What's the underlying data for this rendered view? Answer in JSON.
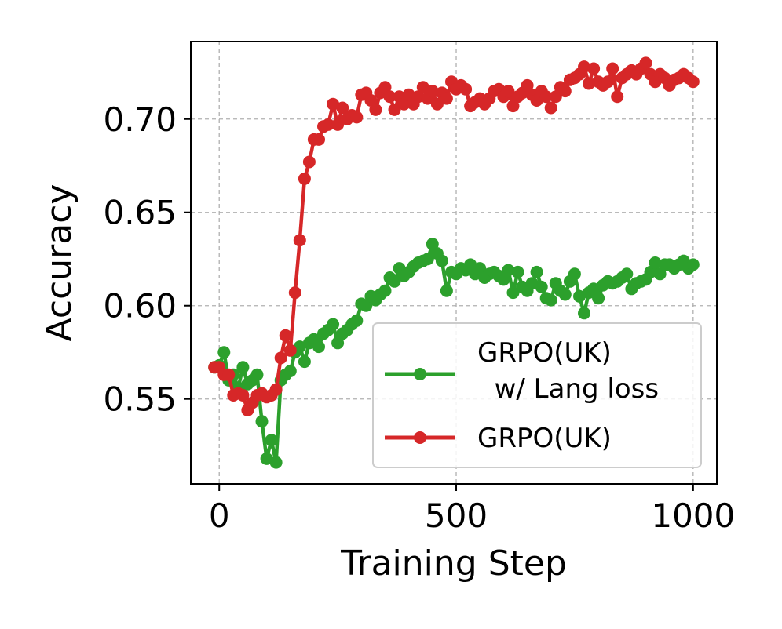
{
  "chart_data": {
    "type": "line",
    "xlabel": "Training Step",
    "ylabel": "Accuracy",
    "xlim": [
      -60,
      1050
    ],
    "ylim": [
      0.5045,
      0.7415
    ],
    "xticks": [
      0,
      500,
      1000
    ],
    "xtick_labels": [
      "0",
      "500",
      "1000"
    ],
    "yticks": [
      0.55,
      0.6,
      0.65,
      0.7
    ],
    "ytick_labels": [
      "0.55",
      "0.60",
      "0.65",
      "0.70"
    ],
    "grid": true,
    "legend_position": "lower right",
    "series": [
      {
        "name": "GRPO(UK)\n w/ Lang loss",
        "color": "#2ca02c",
        "marker": "circle",
        "x": [
          -10,
          0,
          10,
          20,
          30,
          40,
          50,
          60,
          70,
          80,
          90,
          100,
          110,
          120,
          130,
          140,
          150,
          160,
          170,
          180,
          190,
          200,
          210,
          220,
          230,
          240,
          250,
          260,
          270,
          280,
          290,
          300,
          310,
          320,
          330,
          340,
          350,
          360,
          370,
          380,
          390,
          400,
          410,
          420,
          430,
          440,
          450,
          460,
          470,
          480,
          490,
          500,
          510,
          520,
          530,
          540,
          550,
          560,
          570,
          580,
          590,
          600,
          610,
          620,
          630,
          640,
          650,
          660,
          670,
          680,
          690,
          700,
          710,
          720,
          730,
          740,
          750,
          760,
          770,
          780,
          790,
          800,
          810,
          820,
          830,
          840,
          850,
          860,
          870,
          880,
          890,
          900,
          910,
          920,
          930,
          940,
          950,
          960,
          970,
          980,
          990,
          1000
        ],
        "y": [
          0.567,
          0.568,
          0.575,
          0.56,
          0.563,
          0.556,
          0.567,
          0.558,
          0.56,
          0.563,
          0.538,
          0.518,
          0.528,
          0.516,
          0.56,
          0.563,
          0.565,
          0.575,
          0.578,
          0.57,
          0.58,
          0.582,
          0.578,
          0.585,
          0.587,
          0.59,
          0.58,
          0.585,
          0.587,
          0.59,
          0.592,
          0.601,
          0.6,
          0.605,
          0.603,
          0.606,
          0.608,
          0.615,
          0.613,
          0.62,
          0.616,
          0.618,
          0.621,
          0.623,
          0.624,
          0.625,
          0.633,
          0.628,
          0.624,
          0.608,
          0.618,
          0.617,
          0.62,
          0.619,
          0.622,
          0.617,
          0.62,
          0.615,
          0.617,
          0.618,
          0.616,
          0.614,
          0.619,
          0.607,
          0.618,
          0.61,
          0.608,
          0.612,
          0.618,
          0.61,
          0.604,
          0.603,
          0.612,
          0.608,
          0.606,
          0.613,
          0.617,
          0.605,
          0.596,
          0.607,
          0.609,
          0.604,
          0.611,
          0.613,
          0.612,
          0.613,
          0.615,
          0.617,
          0.609,
          0.612,
          0.613,
          0.614,
          0.618,
          0.623,
          0.617,
          0.622,
          0.622,
          0.62,
          0.622,
          0.624,
          0.62,
          0.622
        ]
      },
      {
        "name": "GRPO(UK)",
        "color": "#d62728",
        "marker": "circle",
        "x": [
          -10,
          0,
          10,
          20,
          30,
          40,
          50,
          60,
          70,
          80,
          90,
          100,
          110,
          120,
          130,
          140,
          150,
          160,
          170,
          180,
          190,
          200,
          210,
          220,
          230,
          240,
          250,
          260,
          270,
          280,
          290,
          300,
          310,
          320,
          330,
          340,
          350,
          360,
          370,
          380,
          390,
          400,
          410,
          420,
          430,
          440,
          450,
          460,
          470,
          480,
          490,
          500,
          510,
          520,
          530,
          540,
          550,
          560,
          570,
          580,
          590,
          600,
          610,
          620,
          630,
          640,
          650,
          660,
          670,
          680,
          690,
          700,
          710,
          720,
          730,
          740,
          750,
          760,
          770,
          780,
          790,
          800,
          810,
          820,
          830,
          840,
          850,
          860,
          870,
          880,
          890,
          900,
          910,
          920,
          930,
          940,
          950,
          960,
          970,
          980,
          990,
          1000
        ],
        "y": [
          0.567,
          0.567,
          0.563,
          0.563,
          0.552,
          0.553,
          0.552,
          0.544,
          0.548,
          0.552,
          0.553,
          0.551,
          0.552,
          0.555,
          0.572,
          0.584,
          0.576,
          0.607,
          0.635,
          0.668,
          0.677,
          0.689,
          0.689,
          0.696,
          0.697,
          0.708,
          0.697,
          0.706,
          0.7,
          0.702,
          0.701,
          0.713,
          0.714,
          0.71,
          0.705,
          0.714,
          0.717,
          0.712,
          0.705,
          0.712,
          0.708,
          0.713,
          0.708,
          0.712,
          0.717,
          0.711,
          0.715,
          0.708,
          0.714,
          0.711,
          0.72,
          0.716,
          0.718,
          0.716,
          0.707,
          0.709,
          0.711,
          0.708,
          0.711,
          0.715,
          0.716,
          0.712,
          0.715,
          0.707,
          0.712,
          0.714,
          0.718,
          0.713,
          0.71,
          0.715,
          0.712,
          0.706,
          0.712,
          0.717,
          0.715,
          0.721,
          0.722,
          0.724,
          0.728,
          0.719,
          0.727,
          0.72,
          0.718,
          0.72,
          0.727,
          0.712,
          0.722,
          0.724,
          0.726,
          0.724,
          0.727,
          0.73,
          0.724,
          0.72,
          0.724,
          0.722,
          0.718,
          0.721,
          0.722,
          0.724,
          0.722,
          0.72
        ]
      }
    ]
  }
}
